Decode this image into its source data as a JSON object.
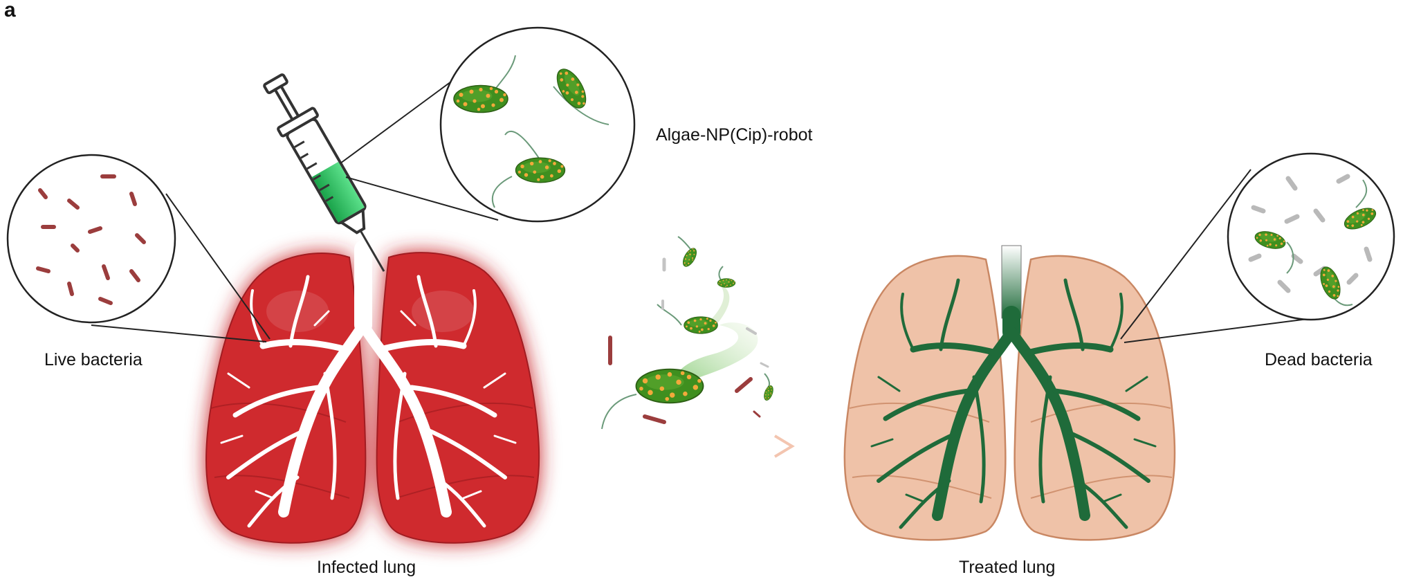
{
  "figure": {
    "panel_letter": "a",
    "labels": {
      "robot": "Algae-NP(Cip)-robot",
      "live_bacteria": "Live bacteria",
      "dead_bacteria": "Dead bacteria",
      "infected_lung": "Infected lung",
      "treated_lung": "Treated lung"
    }
  },
  "colors": {
    "infected_lung": "#cf2b2f",
    "infected_glow": "#ff3b3b",
    "treated_lung": "#efc2a8",
    "treated_outline": "#c98763",
    "airway_green": "#1f6b3a",
    "algae_green": "#3f8f1f",
    "nanoparticle_orange": "#f2a93b",
    "live_bacteria": "#9b3d3d",
    "dead_bacteria": "#b9b9b9",
    "arrow_red": "#e0262b",
    "syringe_liquid": "#27c25c"
  },
  "icons": {
    "syringe": "syringe-icon",
    "algae": "algae-robot-icon"
  }
}
